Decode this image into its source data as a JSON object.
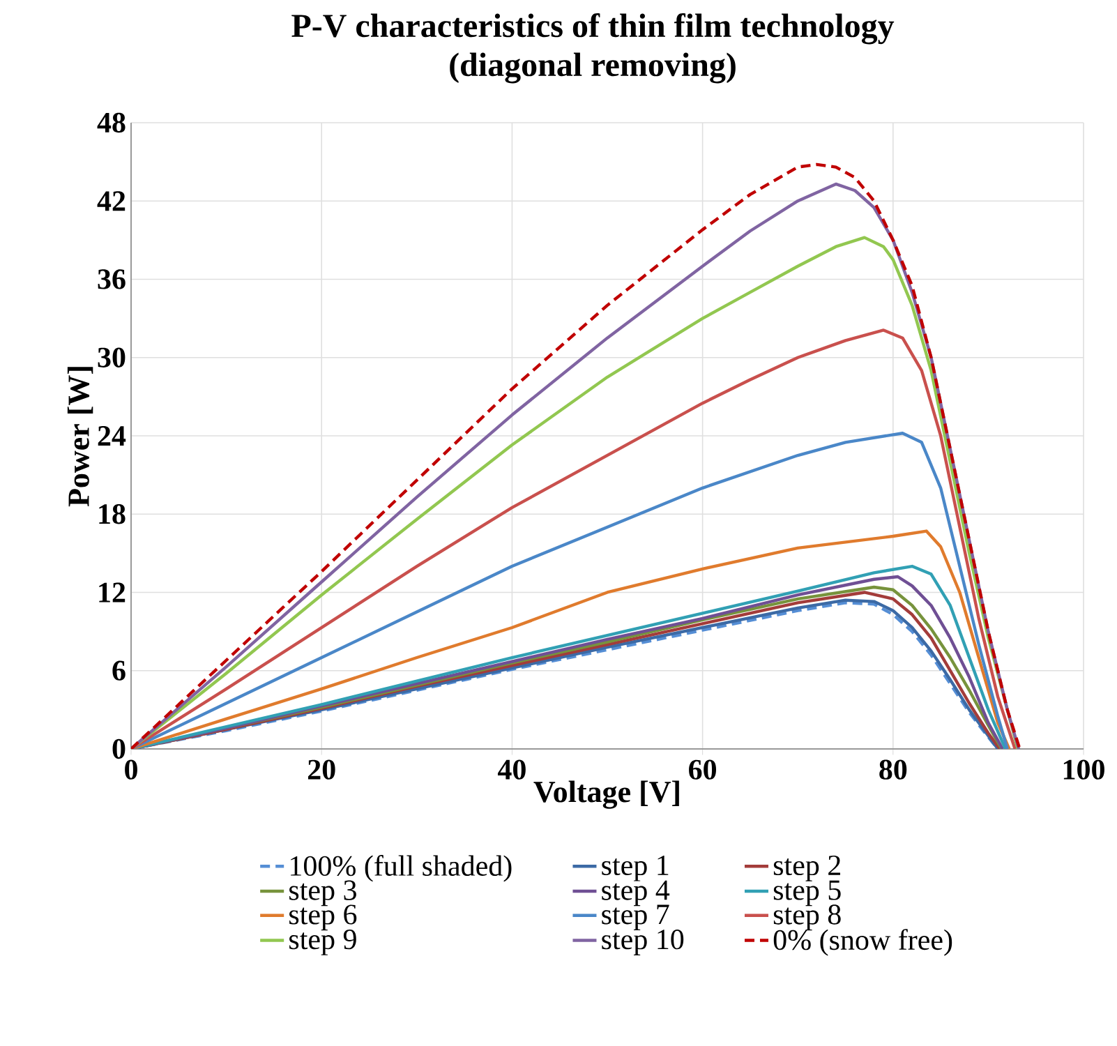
{
  "chart_data": {
    "type": "line",
    "title": "P-V characteristics of thin film technology",
    "subtitle": "(diagonal removing)",
    "xlabel": "Voltage [V]",
    "ylabel": "Power [W]",
    "xlim": [
      0,
      100
    ],
    "ylim": [
      0,
      48
    ],
    "xticks": [
      0,
      20,
      40,
      60,
      80,
      100
    ],
    "yticks": [
      0,
      6,
      12,
      18,
      24,
      30,
      36,
      42,
      48
    ],
    "grid": true,
    "legend": "bottom",
    "marker": "none",
    "series": [
      {
        "name": "100% (full shaded)",
        "color": "#558ed5",
        "line_style": "dashed",
        "x": [
          0,
          10,
          20,
          30,
          40,
          50,
          60,
          70,
          75,
          78,
          80,
          82,
          84,
          86,
          88,
          90,
          91
        ],
        "values": [
          0,
          1.4,
          2.9,
          4.5,
          6.1,
          7.6,
          9.1,
          10.6,
          11.2,
          11.1,
          10.3,
          9,
          7.2,
          5,
          2.8,
          0.9,
          0
        ]
      },
      {
        "name": "step 1",
        "color": "#3c6aa5",
        "line_style": "solid",
        "x": [
          0,
          10,
          20,
          30,
          40,
          50,
          60,
          70,
          75,
          78,
          80,
          82,
          84,
          86,
          88,
          90,
          91
        ],
        "values": [
          0,
          1.5,
          3,
          4.6,
          6.2,
          7.8,
          9.3,
          10.8,
          11.4,
          11.3,
          10.6,
          9.3,
          7.5,
          5.3,
          3,
          1,
          0
        ]
      },
      {
        "name": "step 2",
        "color": "#a33c3a",
        "line_style": "solid",
        "x": [
          0,
          10,
          20,
          30,
          40,
          50,
          60,
          70,
          77,
          80,
          82,
          84,
          86,
          88,
          90,
          91.2
        ],
        "values": [
          0,
          1.5,
          3.1,
          4.8,
          6.4,
          8,
          9.6,
          11.2,
          12,
          11.5,
          10.3,
          8.5,
          6,
          3.5,
          1.2,
          0
        ]
      },
      {
        "name": "step 3",
        "color": "#77933c",
        "line_style": "solid",
        "x": [
          0,
          10,
          20,
          30,
          40,
          50,
          60,
          70,
          78,
          80,
          82,
          84,
          86,
          88,
          90,
          91.4
        ],
        "values": [
          0,
          1.6,
          3.2,
          4.9,
          6.6,
          8.2,
          9.9,
          11.5,
          12.4,
          12.2,
          11,
          9.2,
          7,
          4.5,
          1.8,
          0
        ]
      },
      {
        "name": "step 4",
        "color": "#6f4f94",
        "line_style": "solid",
        "x": [
          0,
          10,
          20,
          30,
          40,
          50,
          60,
          70,
          78,
          80.5,
          82,
          84,
          86,
          88,
          90,
          91.5
        ],
        "values": [
          0,
          1.6,
          3.3,
          5,
          6.7,
          8.4,
          10,
          11.8,
          13,
          13.2,
          12.5,
          11,
          8.5,
          5.5,
          2,
          0
        ]
      },
      {
        "name": "step 5",
        "color": "#31a0b4",
        "line_style": "solid",
        "x": [
          0,
          10,
          20,
          30,
          40,
          50,
          60,
          70,
          78,
          82,
          84,
          86,
          88,
          90,
          91.8
        ],
        "values": [
          0,
          1.7,
          3.4,
          5.2,
          7,
          8.7,
          10.4,
          12.1,
          13.5,
          14,
          13.4,
          11,
          7,
          3,
          0
        ]
      },
      {
        "name": "step 6",
        "color": "#e07b2d",
        "line_style": "solid",
        "x": [
          0,
          10,
          20,
          30,
          40,
          50,
          60,
          70,
          80,
          83.5,
          85,
          87,
          89,
          91,
          92.2
        ],
        "values": [
          0,
          2.3,
          4.6,
          7,
          9.3,
          12,
          13.8,
          15.4,
          16.3,
          16.7,
          15.5,
          12,
          7,
          2,
          0
        ]
      },
      {
        "name": "step 7",
        "color": "#4a87c8",
        "line_style": "solid",
        "x": [
          0,
          10,
          20,
          30,
          40,
          50,
          60,
          70,
          75,
          81,
          83,
          85,
          87,
          89,
          91,
          92
        ],
        "values": [
          0,
          3.5,
          7,
          10.5,
          14,
          17,
          20,
          22.5,
          23.5,
          24.2,
          23.5,
          20,
          14,
          8,
          2.5,
          0
        ]
      },
      {
        "name": "step 8",
        "color": "#c9504d",
        "line_style": "solid",
        "x": [
          0,
          10,
          20,
          30,
          40,
          50,
          60,
          65,
          70,
          75,
          79,
          81,
          83,
          85,
          87,
          89,
          91,
          92.8
        ],
        "values": [
          0,
          4.6,
          9.3,
          14,
          18.5,
          22.5,
          26.5,
          28.3,
          30,
          31.3,
          32.1,
          31.5,
          29,
          24,
          17,
          10,
          4,
          0
        ]
      },
      {
        "name": "step 9",
        "color": "#92c750",
        "line_style": "solid",
        "x": [
          0,
          10,
          20,
          30,
          40,
          50,
          60,
          65,
          70,
          74,
          77,
          79,
          80,
          82,
          84,
          86,
          88,
          90,
          92,
          93.1
        ],
        "values": [
          0,
          5.8,
          11.8,
          17.6,
          23.3,
          28.5,
          33,
          35,
          37,
          38.5,
          39.2,
          38.5,
          37.5,
          34,
          29,
          22,
          15,
          8.5,
          3,
          0
        ]
      },
      {
        "name": "step 10",
        "color": "#8064a2",
        "line_style": "solid",
        "x": [
          0,
          10,
          20,
          30,
          40,
          50,
          60,
          65,
          70,
          74,
          76,
          78,
          80,
          82,
          84,
          86,
          88,
          90,
          92,
          93.2
        ],
        "values": [
          0,
          6.3,
          12.8,
          19.3,
          25.6,
          31.5,
          37,
          39.7,
          42,
          43.3,
          42.8,
          41.5,
          39,
          35,
          30,
          23,
          16,
          9,
          3,
          0
        ]
      },
      {
        "name": "0% (snow free)",
        "color": "#c00000",
        "line_style": "dashed",
        "x": [
          0,
          10,
          20,
          30,
          40,
          50,
          60,
          65,
          70,
          72,
          74,
          76,
          78,
          80,
          82,
          84,
          86,
          88,
          90,
          92,
          93.3
        ],
        "values": [
          0,
          6.8,
          13.6,
          20.6,
          27.6,
          34,
          39.8,
          42.5,
          44.6,
          44.8,
          44.6,
          43.8,
          42,
          39,
          35.5,
          30,
          23,
          16,
          9,
          3,
          0
        ]
      }
    ]
  }
}
